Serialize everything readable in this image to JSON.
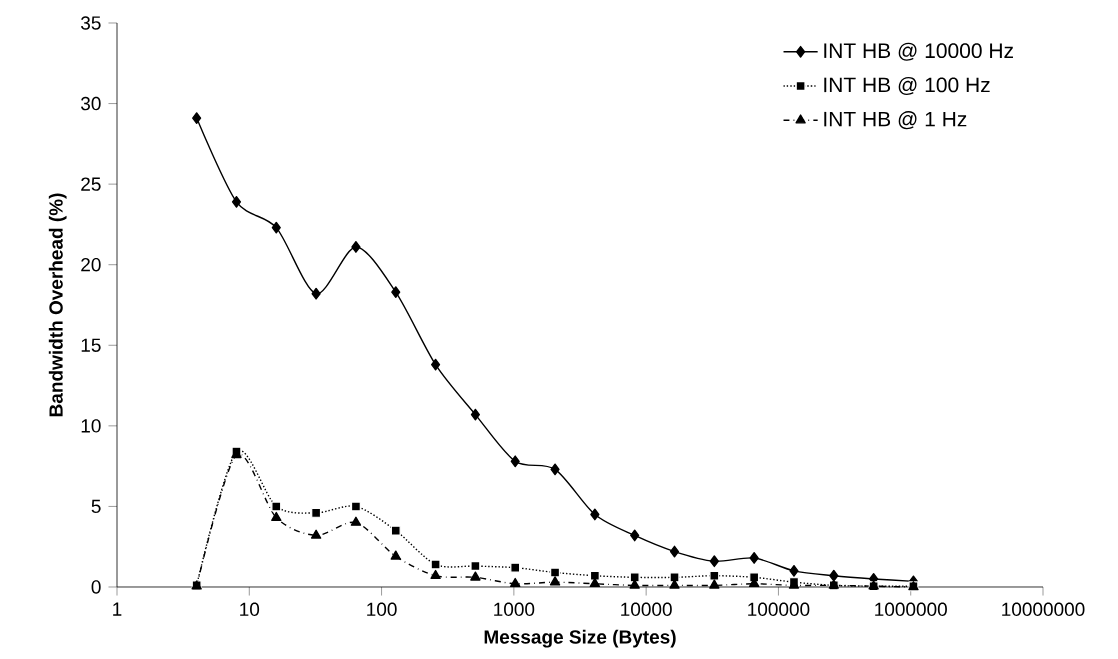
{
  "chart_data": {
    "type": "line",
    "xlabel": "Message Size (Bytes)",
    "ylabel": "Bandwidth Overhead (%)",
    "log": "x",
    "x": [
      4,
      8,
      16,
      32,
      64,
      128,
      256,
      512,
      1024,
      2048,
      4096,
      8192,
      16384,
      32768,
      65536,
      131072,
      262144,
      524288,
      1048576
    ],
    "xlim": [
      1,
      10000000
    ],
    "xticks": [
      1,
      10,
      100,
      1000,
      10000,
      100000,
      1000000,
      10000000
    ],
    "ylim": [
      0,
      35
    ],
    "yticks": [
      0,
      5,
      10,
      15,
      20,
      25,
      30,
      35
    ],
    "grid": false,
    "legend": "top right",
    "series": [
      {
        "name": "INT HB @ 10000 Hz",
        "color": "#000000",
        "marker": "diamond",
        "line_style": "solid",
        "values": [
          29.1,
          23.9,
          22.3,
          18.2,
          21.1,
          18.3,
          13.8,
          10.7,
          7.8,
          7.3,
          4.5,
          3.2,
          2.2,
          1.6,
          1.8,
          1.0,
          0.7,
          0.5,
          0.35
        ]
      },
      {
        "name": "INT HB @ 100 Hz",
        "color": "#000000",
        "marker": "square",
        "line_style": "dotted",
        "values": [
          0.1,
          8.4,
          5.0,
          4.6,
          5.0,
          3.5,
          1.4,
          1.3,
          1.2,
          0.9,
          0.7,
          0.6,
          0.6,
          0.7,
          0.6,
          0.3,
          0.1,
          0.05,
          0.05
        ]
      },
      {
        "name": "INT HB @ 1 Hz",
        "color": "#000000",
        "marker": "triangle",
        "line_style": "dashed",
        "values": [
          0.05,
          8.2,
          4.3,
          3.2,
          4.0,
          1.9,
          0.7,
          0.6,
          0.2,
          0.3,
          0.2,
          0.1,
          0.1,
          0.1,
          0.2,
          0.1,
          0.1,
          0.05,
          0.0
        ]
      }
    ]
  }
}
